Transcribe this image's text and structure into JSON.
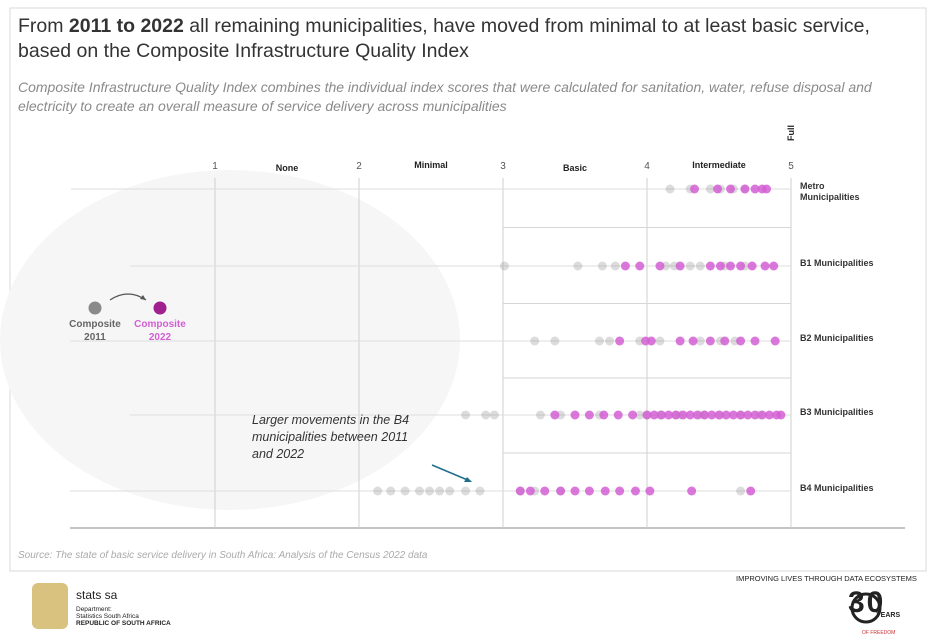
{
  "chart_data": {
    "type": "strip",
    "title": [
      "From",
      "2011 to 2022",
      "all remaining municipalities, have moved from minimal to at least basic service, based on the Composite Infrastructure Quality Index"
    ],
    "subtitle": "Composite Infrastructure Quality Index combines the individual index scores that were calculated for sanitation, water, refuse disposal and electricity to create an overall measure of service delivery across municipalities",
    "xlim": [
      0,
      5
    ],
    "xticks": [
      1,
      2,
      3,
      4,
      5
    ],
    "bands": [
      "None",
      "Minimal",
      "Basic",
      "Intermediate",
      "Full"
    ],
    "categories": [
      "Metro Municipalities",
      "B1 Municipalities",
      "B2 Municipalities",
      "B3 Municipalities",
      "B4 Municipalities"
    ],
    "series": [
      {
        "name": "Composite 2011",
        "color": "#8a8a8a",
        "values": [
          [
            4.16,
            4.3,
            4.44,
            4.51,
            4.6,
            4.68
          ],
          [
            3.01,
            3.52,
            3.69,
            3.78,
            4.13,
            4.19,
            4.3,
            4.37,
            4.54,
            4.68
          ],
          [
            3.22,
            3.36,
            3.67,
            3.74,
            3.95,
            4.09,
            4.37,
            4.51,
            4.61
          ],
          [
            2.74,
            2.88,
            2.94,
            3.26,
            3.4,
            3.67,
            3.95,
            4.0,
            4.09,
            4.2,
            4.23,
            4.37,
            4.4,
            4.51,
            4.65,
            4.78
          ],
          [
            2.13,
            2.22,
            2.32,
            2.42,
            2.49,
            2.56,
            2.63,
            2.74,
            2.84,
            3.12,
            3.22,
            3.4,
            4.65
          ]
        ]
      },
      {
        "name": "Composite 2022",
        "color": "#d35fd3",
        "values": [
          [
            4.33,
            4.49,
            4.58,
            4.68,
            4.75,
            4.8,
            4.83
          ],
          [
            3.85,
            3.95,
            4.09,
            4.23,
            4.44,
            4.51,
            4.58,
            4.65,
            4.73,
            4.82,
            4.88
          ],
          [
            3.81,
            3.99,
            4.03,
            4.23,
            4.32,
            4.44,
            4.54,
            4.65,
            4.75,
            4.89
          ],
          [
            3.36,
            3.5,
            3.6,
            3.7,
            3.8,
            3.9,
            4.0,
            4.05,
            4.1,
            4.15,
            4.2,
            4.25,
            4.3,
            4.35,
            4.4,
            4.45,
            4.5,
            4.55,
            4.6,
            4.65,
            4.7,
            4.75,
            4.8,
            4.85,
            4.9,
            4.93
          ],
          [
            3.12,
            3.19,
            3.29,
            3.4,
            3.5,
            3.6,
            3.71,
            3.81,
            3.92,
            4.02,
            4.31,
            4.72
          ]
        ]
      }
    ],
    "annotation": "Larger movements in the B4 municipalities between 2011 and 2022",
    "source": "Source: The state of basic service delivery in South Africa: Analysis of the Census 2022 data"
  },
  "footer": {
    "brand": "stats sa",
    "department": "Department:",
    "agency": "Statistics South Africa",
    "country": "REPUBLIC OF SOUTH AFRICA",
    "slogan": "IMPROVING LIVES THROUGH DATA ECOSYSTEMS",
    "badge_number": "30",
    "badge_years": "YEARS",
    "badge_freedom": "OF FREEDOM"
  }
}
